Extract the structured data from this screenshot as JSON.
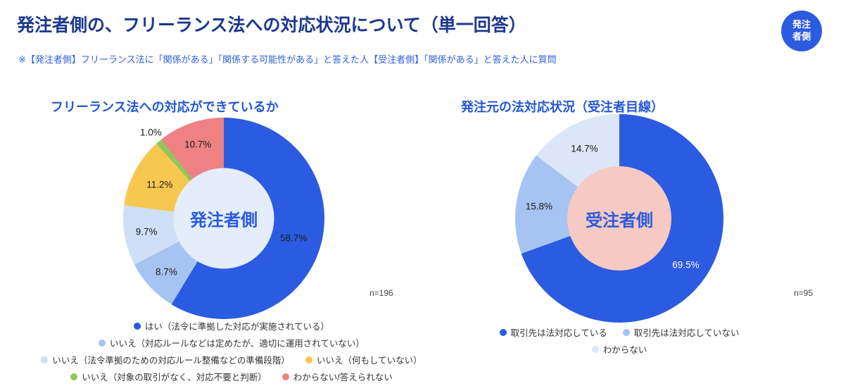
{
  "header": {
    "title": "発注者側の、フリーランス法への対応状況について（単一回答）",
    "note": "※【発注者側】フリーランス法に「関係がある」「関係する可能性がある」と答えた人【受注者側】「関係がある」と答えた人に質問",
    "badge": {
      "line1": "発注",
      "line2": "者側"
    }
  },
  "colors": {
    "primary_blue": "#2B5BE0",
    "title_navy": "#1B388C",
    "chart_title_blue": "#2456D4",
    "note_blue": "#2E5FD8",
    "light_blue": "#A6C4F2",
    "pale_blue": "#CEDFF7",
    "palest_blue": "#DBE7F8",
    "yellow": "#F7C84F",
    "green": "#8FC75C",
    "red": "#EE8183",
    "left_center_bg": "#E4EDF9",
    "right_center_bg": "#F6C9C2"
  },
  "chart_data": [
    {
      "type": "pie",
      "variant": "donut",
      "title": "フリーランス法への対応ができているか",
      "center_label": "発注者側",
      "center_bg": "#E4EDF9",
      "center_text_color": "#2B5BE0",
      "n_label": "n=196",
      "legend_position": "bottom",
      "slices": [
        {
          "label": "はい（法令に準拠した対応が実施されている）",
          "value": 58.7,
          "pct_label": "58.7%",
          "color": "#2B5BE0",
          "label_r": 0.72,
          "label_color": "#1A1A1A"
        },
        {
          "label": "いいえ（対応ルールなどは定めたが、適切に運用されていない）",
          "value": 8.7,
          "pct_label": "8.7%",
          "color": "#A6C4F2",
          "label_r": 0.78,
          "label_color": "#1A1A1A"
        },
        {
          "label": "いいえ（法令準拠のための対応ルール整備などの準備段階）",
          "value": 9.7,
          "pct_label": "9.7%",
          "color": "#CEDFF7",
          "label_r": 0.78,
          "label_color": "#1A1A1A"
        },
        {
          "label": "いいえ（何もしていない）",
          "value": 11.2,
          "pct_label": "11.2%",
          "color": "#F7C84F",
          "label_r": 0.72,
          "label_color": "#1A1A1A"
        },
        {
          "label": "いいえ（対象の取引がなく、対応不要と判断）",
          "value": 1.0,
          "pct_label": "1.0%",
          "color": "#8FC75C",
          "label_r": 1.12,
          "label_color": "#1A1A1A"
        },
        {
          "label": "わからない/答えられない",
          "value": 10.7,
          "pct_label": "10.7%",
          "color": "#EE8183",
          "label_r": 0.78,
          "label_color": "#1A1A1A"
        }
      ]
    },
    {
      "type": "pie",
      "variant": "donut",
      "title": "発注元の法対応状況（受注者目線）",
      "center_label": "受注者側",
      "center_bg": "#F6C9C2",
      "center_text_color": "#2B5BE0",
      "n_label": "n=95",
      "legend_position": "bottom",
      "slices": [
        {
          "label": "取引先は法対応している",
          "value": 69.5,
          "pct_label": "69.5%",
          "color": "#2B5BE0",
          "label_r": 0.78,
          "label_color": "#FFFFFF"
        },
        {
          "label": "取引先は法対応していない",
          "value": 15.8,
          "pct_label": "15.8%",
          "color": "#A6C4F2",
          "label_r": 0.78,
          "label_color": "#1A1A1A"
        },
        {
          "label": "わからない",
          "value": 14.7,
          "pct_label": "14.7%",
          "color": "#DBE7F8",
          "label_r": 0.75,
          "label_color": "#1A1A1A"
        }
      ]
    }
  ]
}
